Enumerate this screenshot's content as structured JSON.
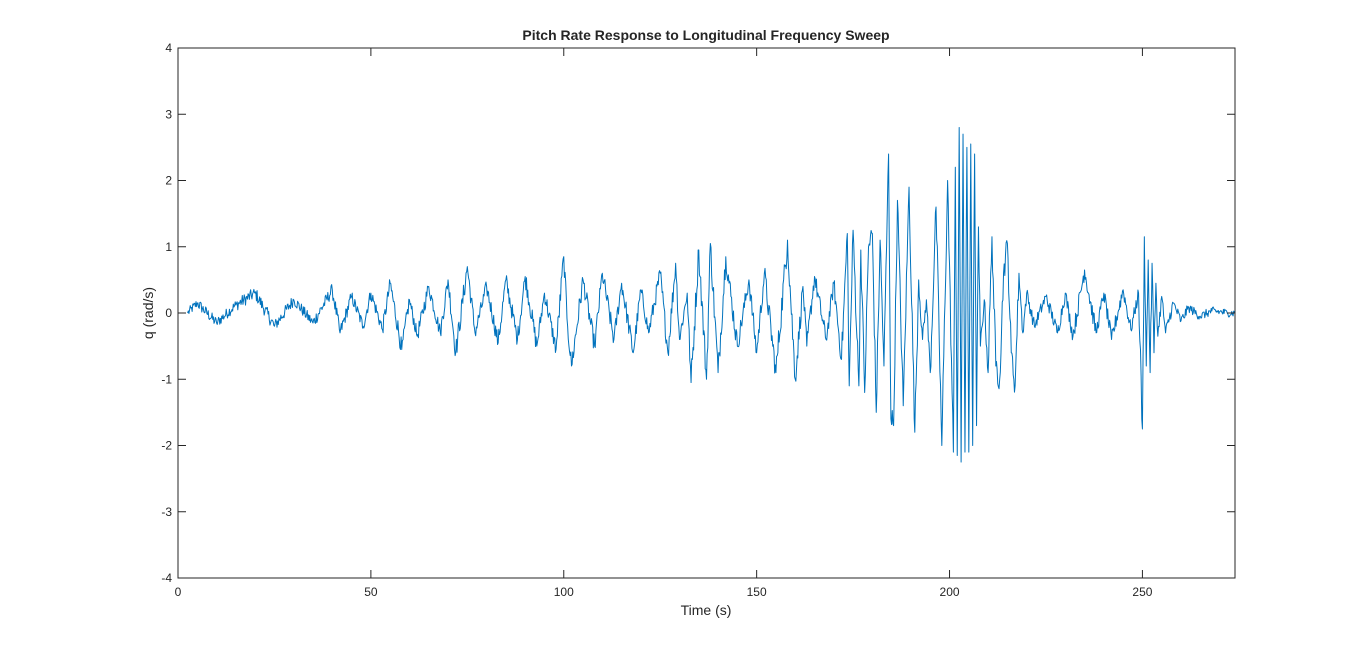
{
  "chart_data": {
    "type": "line",
    "title": "Pitch Rate Response to Longitudinal Frequency Sweep",
    "xlabel": "Time (s)",
    "ylabel": "q (rad/s)",
    "xlim": [
      0,
      274
    ],
    "ylim": [
      -4,
      4
    ],
    "xticks": [
      0,
      50,
      100,
      150,
      200,
      250
    ],
    "yticks": [
      -4,
      -3,
      -2,
      -1,
      0,
      1,
      2,
      3,
      4
    ],
    "grid": false,
    "box": true,
    "series": [
      {
        "color": "#0072BD",
        "x": [
          2.5,
          5,
          10,
          15,
          20,
          25,
          30,
          35,
          40,
          42,
          45,
          48,
          50,
          53,
          55,
          58,
          60,
          62,
          65,
          68,
          70,
          72,
          75,
          77,
          80,
          83,
          85,
          88,
          90,
          93,
          95,
          98,
          100,
          101,
          102,
          105,
          108,
          110,
          113,
          115,
          118,
          120,
          122,
          125,
          127,
          129,
          130,
          132,
          133,
          135,
          137,
          138,
          140,
          142,
          145,
          148,
          150,
          152,
          155,
          158,
          160,
          162,
          163,
          165,
          168,
          170,
          172,
          173.5,
          174,
          175,
          176.5,
          177,
          178,
          179,
          180,
          181,
          182,
          183,
          184.2,
          184.8,
          185.5,
          186.5,
          188,
          189.5,
          191,
          192,
          193,
          194,
          195,
          196.5,
          198,
          199.5,
          201,
          201.5,
          202,
          202.5,
          203,
          203.5,
          204,
          204.5,
          205,
          205.5,
          206,
          206.5,
          207,
          207.5,
          208,
          209,
          210,
          211,
          212,
          213,
          214,
          215,
          216,
          217,
          218,
          219,
          220,
          222,
          225,
          228,
          230,
          232,
          235,
          238,
          240,
          242,
          245,
          247,
          249,
          250,
          250.5,
          251,
          251.5,
          252,
          252.5,
          253,
          253.5,
          254,
          255,
          256,
          258,
          260,
          262,
          265,
          268,
          270,
          272,
          274
        ],
        "y": [
          0,
          0.15,
          -0.15,
          0.12,
          0.3,
          -0.2,
          0.2,
          -0.15,
          0.35,
          -0.3,
          0.25,
          -0.2,
          0.3,
          -0.25,
          0.45,
          -0.55,
          0.2,
          -0.35,
          0.4,
          -0.3,
          0.5,
          -0.6,
          0.7,
          -0.3,
          0.4,
          -0.45,
          0.5,
          -0.4,
          0.55,
          -0.5,
          0.3,
          -0.55,
          0.85,
          -0.2,
          -0.8,
          0.5,
          -0.5,
          0.6,
          -0.4,
          0.45,
          -0.6,
          0.35,
          -0.3,
          0.6,
          -0.6,
          0.75,
          -0.4,
          0.3,
          -1.05,
          0.95,
          -1.0,
          1.05,
          -0.9,
          0.85,
          -0.5,
          0.5,
          -0.6,
          0.6,
          -0.9,
          1.1,
          -1.0,
          0.4,
          -0.5,
          0.55,
          -0.4,
          0.45,
          -0.7,
          1.2,
          -1.1,
          1.25,
          -1.1,
          0.95,
          -1.2,
          1.0,
          1.2,
          -1.5,
          1.1,
          -0.8,
          2.4,
          -1.6,
          -1.7,
          1.7,
          -1.4,
          1.9,
          -1.8,
          0.5,
          -0.4,
          0.2,
          -0.9,
          1.6,
          -2.0,
          2.0,
          -2.1,
          2.2,
          -2.15,
          2.8,
          -2.25,
          2.7,
          -2.1,
          2.5,
          -2.1,
          2.55,
          -2.0,
          2.4,
          -1.7,
          1.3,
          -0.5,
          0.2,
          -0.9,
          1.15,
          -0.8,
          -1.0,
          0.6,
          1.05,
          -0.6,
          -1.1,
          0.6,
          -0.3,
          0.3,
          -0.2,
          0.25,
          -0.3,
          0.3,
          -0.35,
          0.65,
          -0.3,
          0.3,
          -0.4,
          0.35,
          -0.25,
          0.3,
          -1.75,
          1.15,
          -0.8,
          0.8,
          -0.9,
          0.75,
          -0.6,
          0.45,
          -0.35,
          0.25,
          -0.3,
          0.15,
          -0.12,
          0.08,
          -0.05,
          0.03,
          0.02,
          0.0,
          0.0
        ]
      }
    ]
  }
}
